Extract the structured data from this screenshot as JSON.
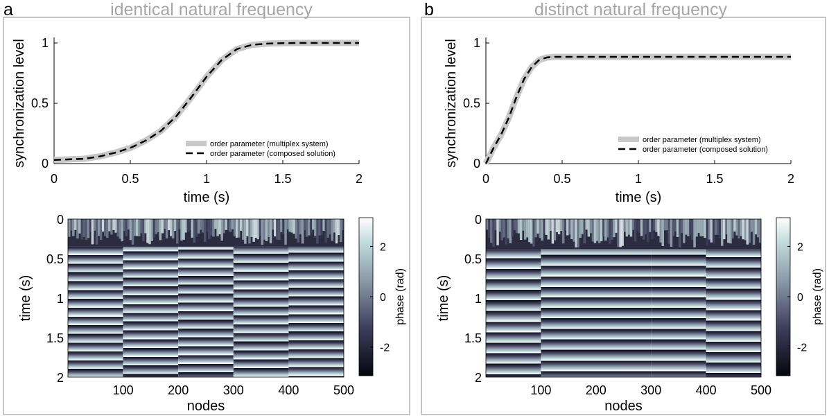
{
  "panels": [
    {
      "letter": "a",
      "title": "identical natural frequency",
      "chart_data": {
        "type": "line",
        "xlabel": "time (s)",
        "ylabel": "synchronization level",
        "xlim": [
          0,
          2
        ],
        "ylim": [
          0,
          1
        ],
        "xticks": [
          "0",
          "0.5",
          "1",
          "1.5",
          "2"
        ],
        "yticks": [
          "0",
          "0.5",
          "1"
        ],
        "legend": "bottom-right",
        "x": [
          0,
          0.1,
          0.2,
          0.3,
          0.4,
          0.5,
          0.6,
          0.7,
          0.8,
          0.9,
          1.0,
          1.1,
          1.2,
          1.3,
          1.4,
          1.5,
          1.6,
          1.7,
          1.8,
          1.9,
          2.0
        ],
        "series": [
          {
            "name": "order parameter (multiplex system)",
            "style": "thick-gray",
            "values": [
              0.03,
              0.035,
              0.04,
              0.06,
              0.09,
              0.13,
              0.19,
              0.27,
              0.39,
              0.55,
              0.72,
              0.86,
              0.95,
              0.985,
              0.995,
              0.998,
              1.0,
              1.0,
              1.0,
              1.0,
              1.0
            ]
          },
          {
            "name": "order parameter (composed solution)",
            "style": "dashed-black",
            "values": [
              0.03,
              0.035,
              0.04,
              0.06,
              0.09,
              0.13,
              0.19,
              0.27,
              0.39,
              0.55,
              0.72,
              0.86,
              0.95,
              0.985,
              0.995,
              0.998,
              1.0,
              1.0,
              1.0,
              1.0,
              1.0
            ]
          }
        ]
      },
      "heatmap": {
        "type": "heatmap",
        "xlabel": "nodes",
        "ylabel": "time (s)",
        "xlim": [
          0,
          500
        ],
        "ylim": [
          0,
          2
        ],
        "xticks": [
          "100",
          "200",
          "300",
          "400",
          "500"
        ],
        "yticks": [
          "0",
          "0.5",
          "1",
          "1.5",
          "2"
        ],
        "colorbar_label": "phase (rad)",
        "colorbar_range": [
          -3.14,
          3.14
        ],
        "colorbar_ticks": [
          "2",
          "0",
          "-2"
        ],
        "group_boundaries": [
          100,
          200,
          300,
          400
        ],
        "sync_time": 0.35,
        "bands_per_second": 9,
        "group_offsets": [
          0.1,
          0.5,
          0.7,
          0.2,
          0.35
        ]
      }
    },
    {
      "letter": "b",
      "title": "distinct natural frequency",
      "chart_data": {
        "type": "line",
        "xlabel": "time (s)",
        "ylabel": "synchronization level",
        "xlim": [
          0,
          2
        ],
        "ylim": [
          0,
          1
        ],
        "xticks": [
          "0",
          "0.5",
          "1",
          "1.5",
          "2"
        ],
        "yticks": [
          "0",
          "0.5",
          "1"
        ],
        "legend": "bottom-right",
        "x": [
          0,
          0.05,
          0.1,
          0.15,
          0.2,
          0.25,
          0.3,
          0.35,
          0.4,
          0.45,
          0.5,
          0.6,
          0.8,
          1.0,
          1.2,
          1.4,
          1.6,
          1.8,
          2.0
        ],
        "series": [
          {
            "name": "order parameter (multiplex system)",
            "style": "thick-gray",
            "values": [
              0.0,
              0.13,
              0.24,
              0.38,
              0.55,
              0.7,
              0.8,
              0.86,
              0.88,
              0.885,
              0.885,
              0.885,
              0.885,
              0.885,
              0.885,
              0.885,
              0.885,
              0.885,
              0.885
            ]
          },
          {
            "name": "order parameter (composed solution)",
            "style": "dashed-black",
            "values": [
              0.0,
              0.13,
              0.24,
              0.38,
              0.55,
              0.7,
              0.8,
              0.86,
              0.88,
              0.885,
              0.885,
              0.885,
              0.885,
              0.885,
              0.885,
              0.885,
              0.885,
              0.885,
              0.885
            ]
          }
        ]
      },
      "heatmap": {
        "type": "heatmap",
        "xlabel": "nodes",
        "ylabel": "time (s)",
        "xlim": [
          0,
          500
        ],
        "ylim": [
          0,
          2
        ],
        "xticks": [
          "100",
          "200",
          "300",
          "400",
          "500"
        ],
        "yticks": [
          "0",
          "0.5",
          "1",
          "1.5",
          "2"
        ],
        "colorbar_label": "phase (rad)",
        "colorbar_range": [
          -3.14,
          3.14
        ],
        "colorbar_ticks": [
          "2",
          "0",
          "-2"
        ],
        "group_boundaries": [
          100,
          300,
          400
        ],
        "sync_time": 0.38,
        "bands_per_second": 7.5,
        "group_offsets": [
          0.15,
          0.45,
          0.45,
          0.25,
          0.6
        ]
      }
    }
  ]
}
